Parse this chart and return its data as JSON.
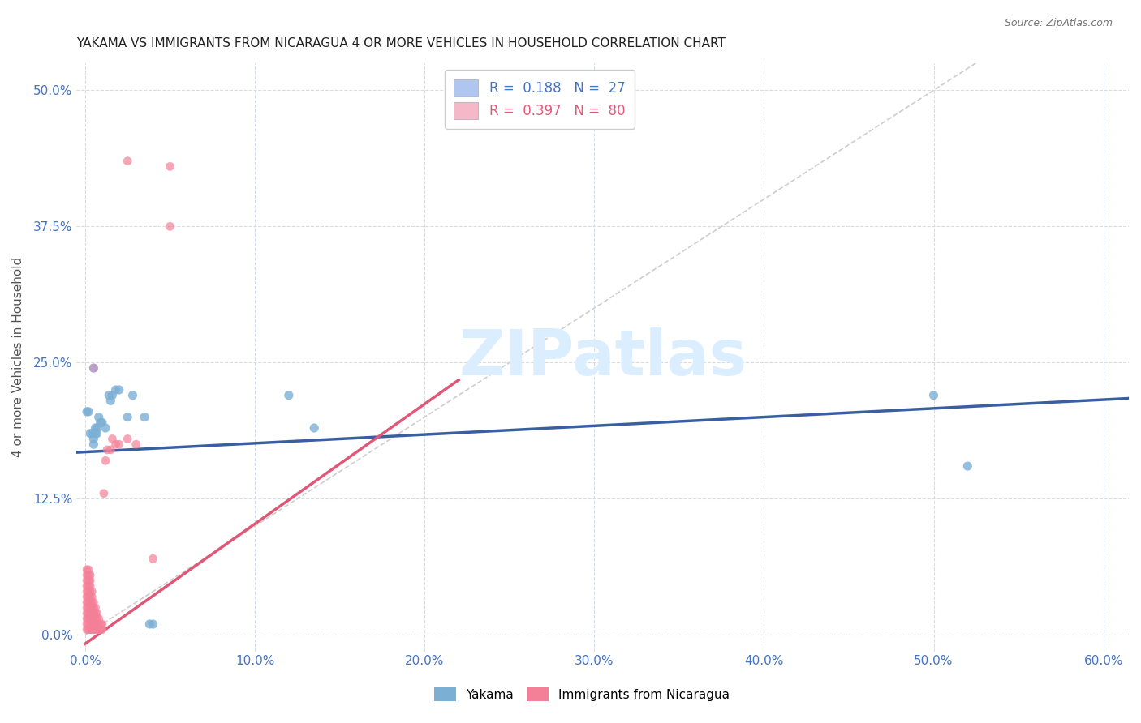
{
  "title": "YAKAMA VS IMMIGRANTS FROM NICARAGUA 4 OR MORE VEHICLES IN HOUSEHOLD CORRELATION CHART",
  "source": "Source: ZipAtlas.com",
  "xlabel_ticks": [
    "0.0%",
    "10.0%",
    "20.0%",
    "30.0%",
    "40.0%",
    "50.0%",
    "60.0%"
  ],
  "xlabel_vals": [
    0.0,
    0.1,
    0.2,
    0.3,
    0.4,
    0.5,
    0.6
  ],
  "ylabel_ticks": [
    "0.0%",
    "12.5%",
    "25.0%",
    "37.5%",
    "50.0%"
  ],
  "ylabel_vals": [
    0.0,
    0.125,
    0.25,
    0.375,
    0.5
  ],
  "xlim": [
    -0.005,
    0.615
  ],
  "ylim": [
    -0.015,
    0.525
  ],
  "yakama_color": "#7bafd4",
  "nicaragua_color": "#f48098",
  "yakama_line_color": "#3a5fa0",
  "nicaragua_line_color": "#e05878",
  "diagonal_color": "#c8c8c8",
  "watermark": "ZIPatlas",
  "watermark_color": "#daeeff",
  "yakama_points": [
    [
      0.001,
      0.205
    ],
    [
      0.002,
      0.205
    ],
    [
      0.003,
      0.185
    ],
    [
      0.004,
      0.185
    ],
    [
      0.005,
      0.18
    ],
    [
      0.005,
      0.175
    ],
    [
      0.006,
      0.19
    ],
    [
      0.006,
      0.185
    ],
    [
      0.007,
      0.19
    ],
    [
      0.007,
      0.185
    ],
    [
      0.008,
      0.2
    ],
    [
      0.009,
      0.195
    ],
    [
      0.01,
      0.195
    ],
    [
      0.012,
      0.19
    ],
    [
      0.014,
      0.22
    ],
    [
      0.015,
      0.215
    ],
    [
      0.016,
      0.22
    ],
    [
      0.018,
      0.225
    ],
    [
      0.02,
      0.225
    ],
    [
      0.025,
      0.2
    ],
    [
      0.028,
      0.22
    ],
    [
      0.035,
      0.2
    ],
    [
      0.038,
      0.01
    ],
    [
      0.04,
      0.01
    ],
    [
      0.12,
      0.22
    ],
    [
      0.135,
      0.19
    ],
    [
      0.5,
      0.22
    ],
    [
      0.52,
      0.155
    ]
  ],
  "nicaragua_points": [
    [
      0.001,
      0.005
    ],
    [
      0.001,
      0.01
    ],
    [
      0.001,
      0.015
    ],
    [
      0.001,
      0.02
    ],
    [
      0.001,
      0.025
    ],
    [
      0.001,
      0.03
    ],
    [
      0.001,
      0.035
    ],
    [
      0.001,
      0.04
    ],
    [
      0.001,
      0.045
    ],
    [
      0.001,
      0.05
    ],
    [
      0.001,
      0.055
    ],
    [
      0.001,
      0.06
    ],
    [
      0.002,
      0.005
    ],
    [
      0.002,
      0.01
    ],
    [
      0.002,
      0.015
    ],
    [
      0.002,
      0.02
    ],
    [
      0.002,
      0.025
    ],
    [
      0.002,
      0.03
    ],
    [
      0.002,
      0.035
    ],
    [
      0.002,
      0.04
    ],
    [
      0.002,
      0.045
    ],
    [
      0.002,
      0.05
    ],
    [
      0.002,
      0.055
    ],
    [
      0.002,
      0.06
    ],
    [
      0.003,
      0.005
    ],
    [
      0.003,
      0.01
    ],
    [
      0.003,
      0.015
    ],
    [
      0.003,
      0.02
    ],
    [
      0.003,
      0.025
    ],
    [
      0.003,
      0.03
    ],
    [
      0.003,
      0.035
    ],
    [
      0.003,
      0.04
    ],
    [
      0.003,
      0.045
    ],
    [
      0.003,
      0.05
    ],
    [
      0.003,
      0.055
    ],
    [
      0.004,
      0.005
    ],
    [
      0.004,
      0.01
    ],
    [
      0.004,
      0.015
    ],
    [
      0.004,
      0.02
    ],
    [
      0.004,
      0.025
    ],
    [
      0.004,
      0.03
    ],
    [
      0.004,
      0.035
    ],
    [
      0.004,
      0.04
    ],
    [
      0.005,
      0.005
    ],
    [
      0.005,
      0.01
    ],
    [
      0.005,
      0.015
    ],
    [
      0.005,
      0.02
    ],
    [
      0.005,
      0.025
    ],
    [
      0.005,
      0.03
    ],
    [
      0.006,
      0.005
    ],
    [
      0.006,
      0.01
    ],
    [
      0.006,
      0.015
    ],
    [
      0.006,
      0.02
    ],
    [
      0.006,
      0.025
    ],
    [
      0.007,
      0.005
    ],
    [
      0.007,
      0.01
    ],
    [
      0.007,
      0.015
    ],
    [
      0.007,
      0.02
    ],
    [
      0.008,
      0.005
    ],
    [
      0.008,
      0.01
    ],
    [
      0.008,
      0.015
    ],
    [
      0.009,
      0.005
    ],
    [
      0.009,
      0.01
    ],
    [
      0.01,
      0.005
    ],
    [
      0.01,
      0.01
    ],
    [
      0.011,
      0.13
    ],
    [
      0.012,
      0.16
    ],
    [
      0.013,
      0.17
    ],
    [
      0.015,
      0.17
    ],
    [
      0.016,
      0.18
    ],
    [
      0.018,
      0.175
    ],
    [
      0.02,
      0.175
    ],
    [
      0.025,
      0.18
    ],
    [
      0.03,
      0.175
    ],
    [
      0.04,
      0.07
    ],
    [
      0.05,
      0.43
    ]
  ],
  "nicaragua_outlier1": [
    0.025,
    0.43
  ],
  "nicaragua_outlier2": [
    0.05,
    0.375
  ],
  "purple_point": [
    0.005,
    0.245
  ]
}
